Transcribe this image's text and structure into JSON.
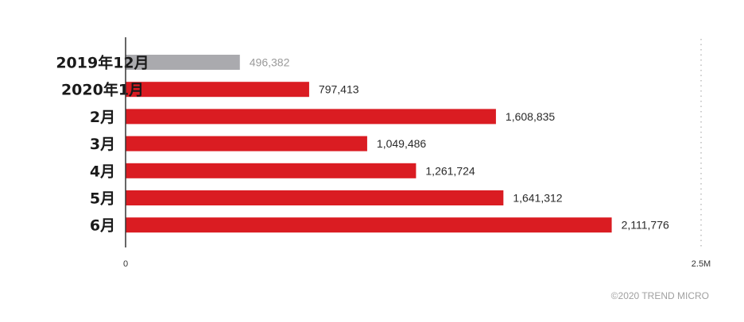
{
  "chart_data": {
    "type": "bar",
    "orientation": "horizontal",
    "categories": [
      "2019年12月",
      "2020年1月",
      "2月",
      "3月",
      "4月",
      "5月",
      "6月"
    ],
    "values": [
      496382,
      797413,
      1608835,
      1049486,
      1261724,
      1641312,
      2111776
    ],
    "value_labels": [
      "496,382",
      "797,413",
      "1,608,835",
      "1,049,486",
      "1,261,724",
      "1,641,312",
      "2,111,776"
    ],
    "xlim": [
      0,
      2500000
    ],
    "x_ticks": [
      {
        "value": 0,
        "label": "0"
      },
      {
        "value": 2500000,
        "label": "2.5M"
      }
    ],
    "title": "",
    "xlabel": "",
    "ylabel": "",
    "grid": false,
    "colors": {
      "highlight": "#da1c22",
      "baseline": "#aaaaae",
      "highlight_label": "#2a2a2a",
      "baseline_label": "#9a9a9a"
    },
    "bar_color_by_category": [
      "baseline",
      "highlight",
      "highlight",
      "highlight",
      "highlight",
      "highlight",
      "highlight"
    ]
  },
  "footer": {
    "copyright": "©2020 TREND MICRO"
  }
}
